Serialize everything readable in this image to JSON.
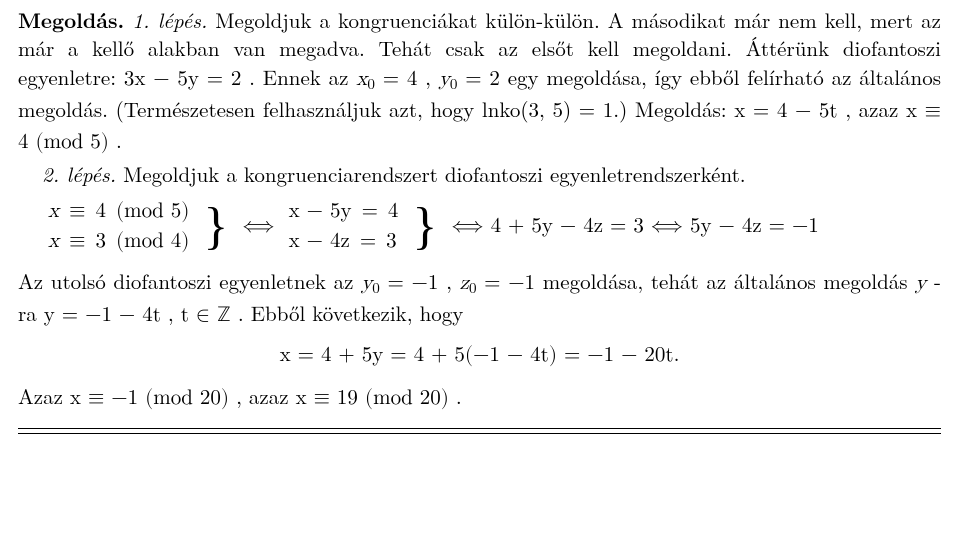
{
  "para1": {
    "lead_bold": "Megoldás.",
    "lead_it": "1. lépés.",
    "text_a": " Megoldjuk a kongruenciákat külön-külön. A másodikat már nem kell, mert az már a kellő alakban van megadva. Tehát csak az elsőt kell megoldani. Áttérünk diofantoszi egyenletre: ",
    "eq1": "3x − 5y = 2",
    "text_b": ". Ennek az ",
    "x0": "x",
    "x0sub": "0",
    "eqx0": " = 4",
    "comma": ", ",
    "y0": "y",
    "y0sub": "0",
    "eqy0": " = 2",
    "text_c": " egy megoldása, így ebből felírható az általános megoldás. (Természetesen felhasználjuk azt, hogy lnko(3, 5) = 1.) Megoldás: ",
    "sol": "x = 4 − 5t",
    "text_d": ", azaz ",
    "cong": "x ≡ 4 (mod 5)",
    "period": "."
  },
  "para2": {
    "lead_it": "2. lépés.",
    "text": " Megoldjuk a kongruenciarendszert diofantoszi egyenletrendszerként."
  },
  "eqblock": {
    "cong1": {
      "x": "x",
      "rel": "≡",
      "v": "4",
      "mod": "(mod 5)"
    },
    "cong2": {
      "x": "x",
      "rel": "≡",
      "v": "3",
      "mod": "(mod 4)"
    },
    "iff": "⟺",
    "lin1": {
      "lhs": "x − 5y",
      "eq": "=",
      "rhs": "4"
    },
    "lin2": {
      "lhs": "x − 4z",
      "eq": "=",
      "rhs": "3"
    },
    "tail": "⟺ 4 + 5y − 4z = 3 ⟺ 5y − 4z = −1"
  },
  "para3": {
    "text_a": "Az utolsó diofantoszi egyenletnek az ",
    "y0": "y",
    "y0sub": "0",
    "eqy0": " = −1",
    "comma": ", ",
    "z0": "z",
    "z0sub": "0",
    "eqz0": " = −1",
    "text_b": " megoldása, tehát az általános megoldás ",
    "yra": "y",
    "text_c": "-ra ",
    "soly": "y = −1 − 4t",
    "text_d": ", ",
    "t": "t ∈ ℤ",
    "text_e": ". Ebből következik, hogy"
  },
  "centered": "x = 4 + 5y = 4 + 5(−1 − 4t) = −1 − 20t.",
  "para4": {
    "text_a": "Azaz ",
    "c1": "x ≡ −1 (mod 20)",
    "text_b": ", azaz ",
    "c2": "x ≡ 19 (mod 20)",
    "period": "."
  }
}
